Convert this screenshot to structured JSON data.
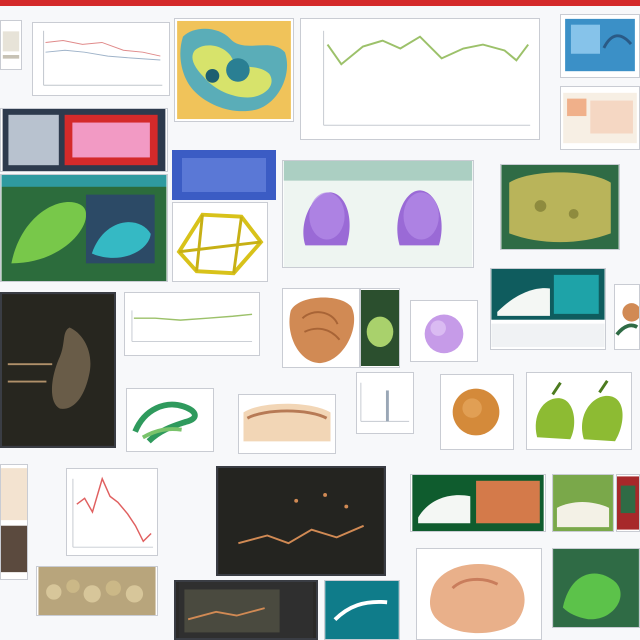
{
  "colors": {
    "top_bar": "#d42a2a",
    "chart_line_green": "#9cc16a",
    "chart_line_red": "#e06060",
    "purple": "#9a6ad6",
    "orange": "#d18a54",
    "teal": "#1ea3a8",
    "navy": "#3b5cc4"
  },
  "tiles": [
    {
      "name": "screenshot-thumbnail-1"
    },
    {
      "name": "chart-thumbnail-line-1"
    },
    {
      "name": "illustration-thumbnail-map"
    },
    {
      "name": "chart-thumbnail-line-green-large"
    },
    {
      "name": "screenshot-thumbnail-blue-app"
    },
    {
      "name": "app-window-thumbnail-red-pink"
    },
    {
      "name": "app-window-thumbnail-green-leaf"
    },
    {
      "name": "panel-thumbnail-navy"
    },
    {
      "name": "diagram-thumbnail-yellow-wire"
    },
    {
      "name": "image-thumbnail-purple-shapes"
    },
    {
      "name": "image-thumbnail-green-texture"
    },
    {
      "name": "app-window-thumbnail-dark-plot"
    },
    {
      "name": "chart-thumbnail-line-small"
    },
    {
      "name": "image-thumbnail-orange-organ"
    },
    {
      "name": "image-thumbnail-green-leaf-small"
    },
    {
      "name": "image-thumbnail-purple-sphere"
    },
    {
      "name": "app-window-thumbnail-teal"
    },
    {
      "name": "image-thumbnail-orange-edge"
    },
    {
      "name": "image-thumbnail-green-wave"
    },
    {
      "name": "image-thumbnail-cross-section"
    },
    {
      "name": "chart-thumbnail-bars-small"
    },
    {
      "name": "image-thumbnail-orange-round"
    },
    {
      "name": "image-thumbnail-green-peppers"
    },
    {
      "name": "image-thumbnail-sketch-left"
    },
    {
      "name": "chart-thumbnail-line-red"
    },
    {
      "name": "app-window-thumbnail-dark-orange"
    },
    {
      "name": "app-window-thumbnail-green-orange"
    },
    {
      "name": "image-thumbnail-green-field"
    },
    {
      "name": "image-thumbnail-pebbles"
    },
    {
      "name": "app-window-thumbnail-bottom-dark"
    },
    {
      "name": "app-window-thumbnail-bottom-teal"
    },
    {
      "name": "image-thumbnail-rock"
    },
    {
      "name": "image-thumbnail-green-bottom"
    }
  ]
}
